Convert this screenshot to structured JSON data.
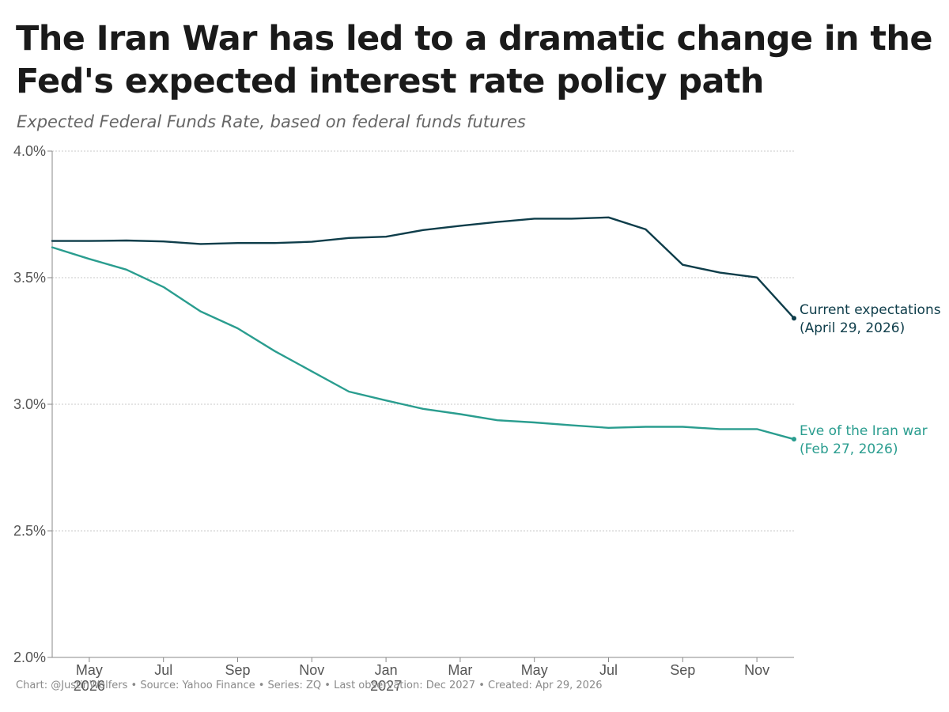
{
  "header": {
    "title": "The Iran War has led to a dramatic change in the Fed's expected interest rate policy path",
    "subtitle": "Expected Federal Funds Rate, based on federal funds futures"
  },
  "footer": {
    "caption": "Chart: @JustinWolfers • Source: Yahoo Finance • Series: ZQ • Last observation: Dec 2027 • Created: Apr 29, 2026"
  },
  "colors": {
    "current": "#0e3d4a",
    "eve": "#2a9d8f",
    "grid": "#c8c8c8",
    "axis": "#888888"
  },
  "chart_data": {
    "type": "line",
    "title": "The Iran War has led to a dramatic change in the Fed's expected interest rate policy path",
    "subtitle": "Expected Federal Funds Rate, based on federal funds futures",
    "xlabel": "",
    "ylabel": "",
    "ylim": [
      2.0,
      4.0
    ],
    "yticks": [
      {
        "value": 2.0,
        "label": "2.0%"
      },
      {
        "value": 2.5,
        "label": "2.5%"
      },
      {
        "value": 3.0,
        "label": "3.0%"
      },
      {
        "value": 3.5,
        "label": "3.5%"
      },
      {
        "value": 4.0,
        "label": "4.0%"
      }
    ],
    "x": [
      "2026-04",
      "2026-05",
      "2026-06",
      "2026-07",
      "2026-08",
      "2026-09",
      "2026-10",
      "2026-11",
      "2026-12",
      "2027-01",
      "2027-02",
      "2027-03",
      "2027-04",
      "2027-05",
      "2027-06",
      "2027-07",
      "2027-08",
      "2027-09",
      "2027-10",
      "2027-11",
      "2027-12"
    ],
    "xticks": [
      {
        "x": "2026-05",
        "label": "May",
        "sub": "2026"
      },
      {
        "x": "2026-07",
        "label": "Jul",
        "sub": ""
      },
      {
        "x": "2026-09",
        "label": "Sep",
        "sub": ""
      },
      {
        "x": "2026-11",
        "label": "Nov",
        "sub": ""
      },
      {
        "x": "2027-01",
        "label": "Jan",
        "sub": "2027"
      },
      {
        "x": "2027-03",
        "label": "Mar",
        "sub": ""
      },
      {
        "x": "2027-05",
        "label": "May",
        "sub": ""
      },
      {
        "x": "2027-07",
        "label": "Jul",
        "sub": ""
      },
      {
        "x": "2027-09",
        "label": "Sep",
        "sub": ""
      },
      {
        "x": "2027-11",
        "label": "Nov",
        "sub": ""
      }
    ],
    "grid": true,
    "series": [
      {
        "key": "current",
        "name": "Current expectations",
        "label_line1": "Current expectations",
        "label_line2": "(April 29, 2026)",
        "values": [
          3.645,
          3.645,
          3.647,
          3.643,
          3.633,
          3.637,
          3.637,
          3.642,
          3.657,
          3.662,
          3.688,
          3.705,
          3.72,
          3.733,
          3.733,
          3.738,
          3.691,
          3.551,
          3.52,
          3.501,
          3.34
        ]
      },
      {
        "key": "eve",
        "name": "Eve of the Iran war",
        "label_line1": "Eve of the Iran war",
        "label_line2": "(Feb 27, 2026)",
        "values": [
          3.62,
          3.574,
          3.532,
          3.463,
          3.367,
          3.3,
          3.21,
          3.13,
          3.05,
          3.015,
          2.982,
          2.961,
          2.937,
          2.928,
          2.917,
          2.907,
          2.911,
          2.911,
          2.902,
          2.902,
          2.862
        ]
      }
    ]
  }
}
